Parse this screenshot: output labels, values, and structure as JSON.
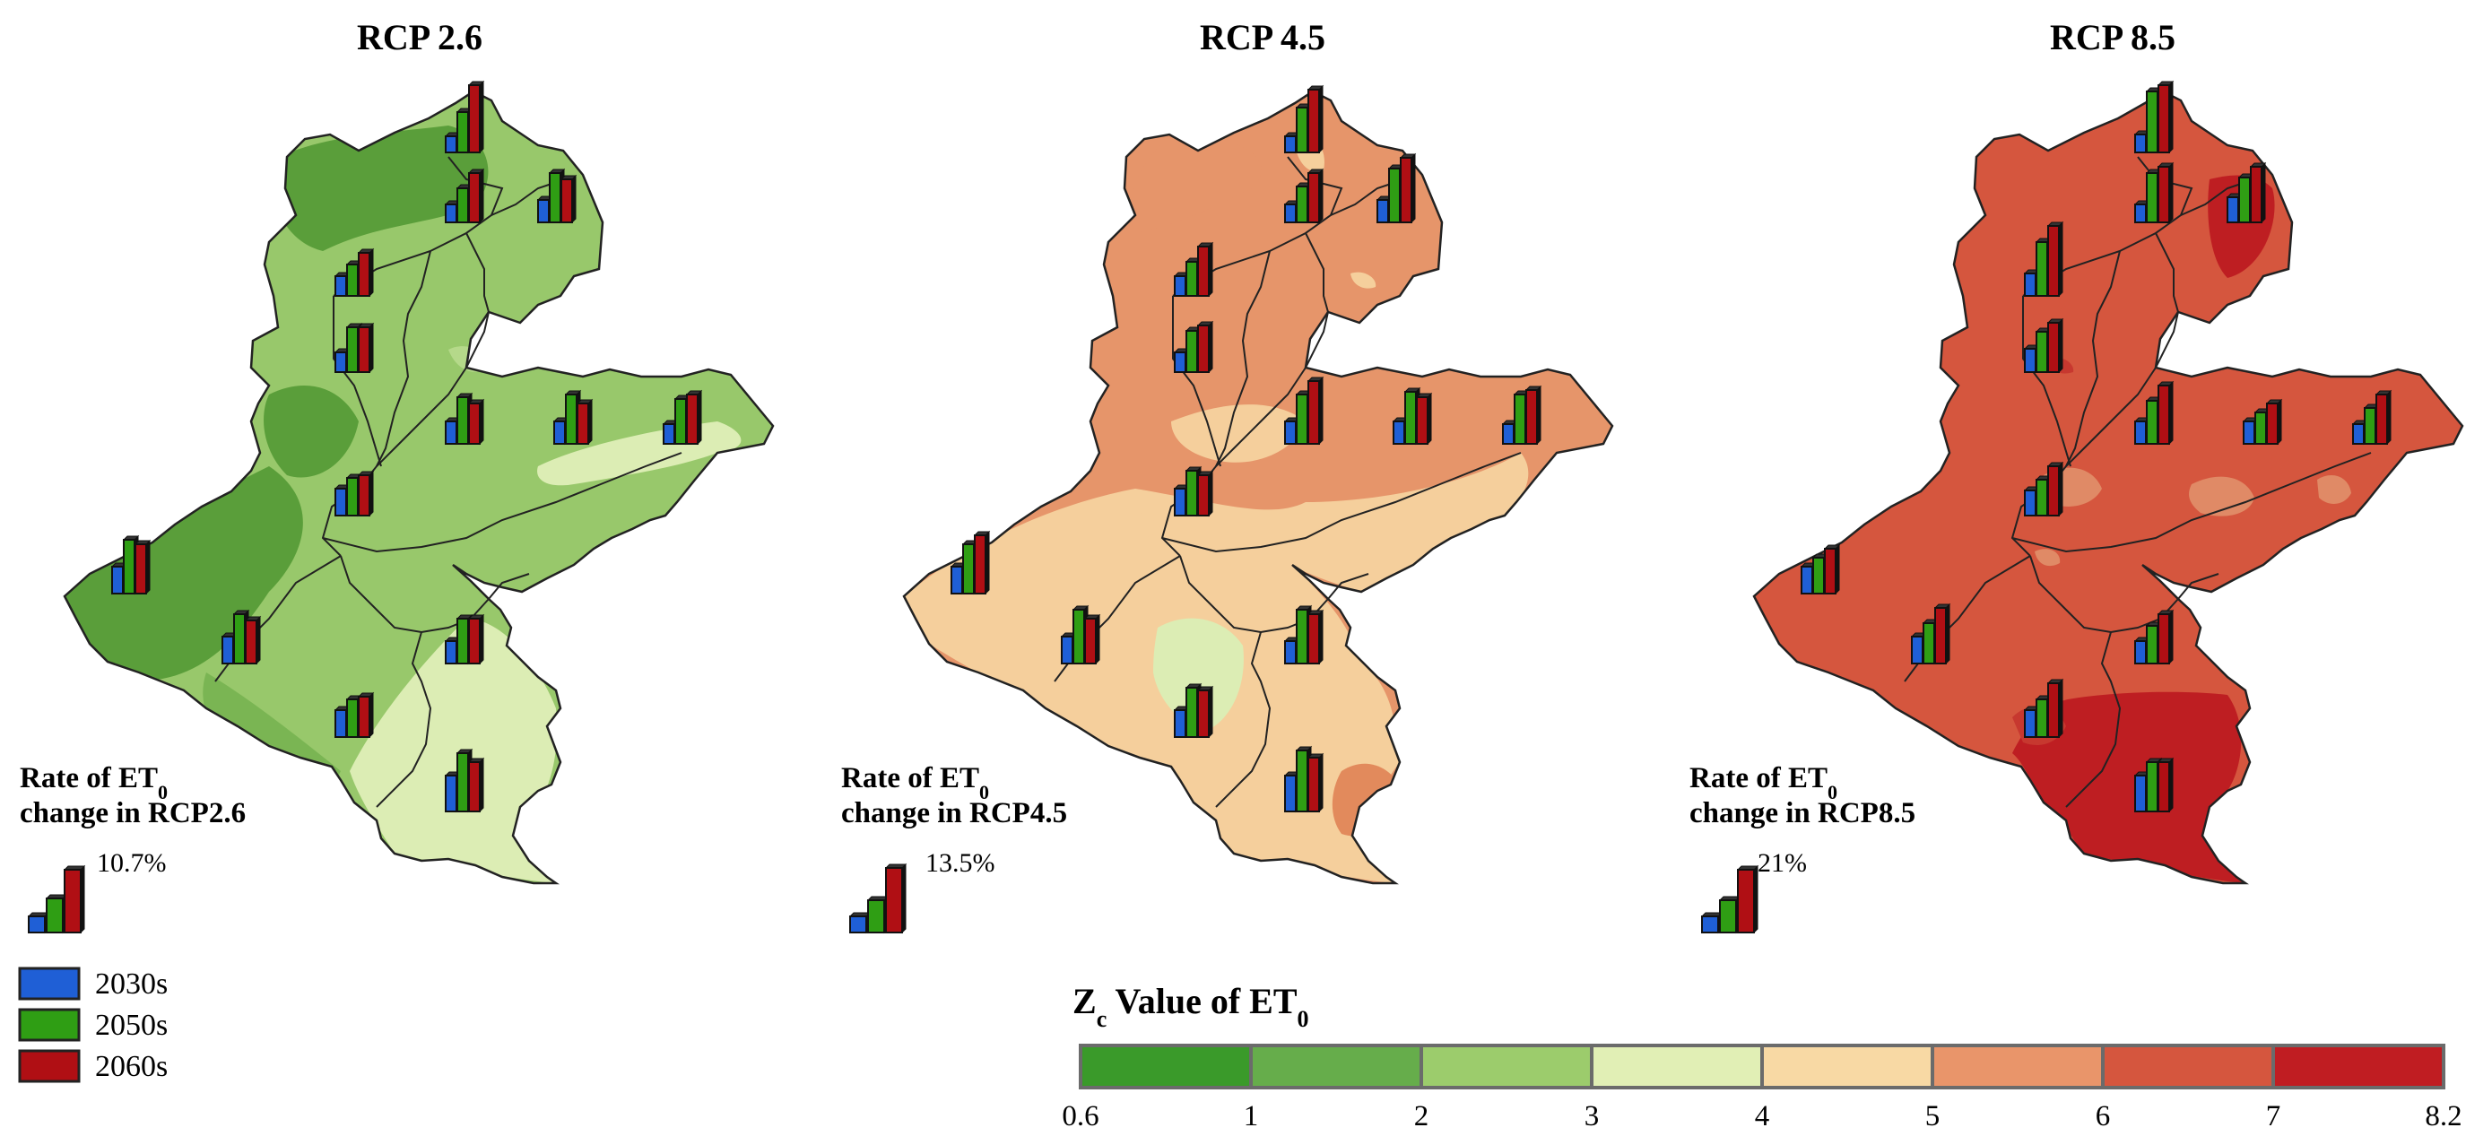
{
  "panels": [
    {
      "title": "RCP 2.6",
      "rate_line1": "Rate of ET",
      "rate_sub": "0",
      "rate_line2": "change in RCP2.6",
      "rate_value": "10.7%",
      "base_color": "#98c86b",
      "zones": [
        "#5a9e3a",
        "#7ab553",
        "#98c86b",
        "#b5d98a",
        "#dcedb4"
      ]
    },
    {
      "title": "RCP 4.5",
      "rate_line1": "Rate of ET",
      "rate_sub": "0",
      "rate_line2": "change in RCP4.5",
      "rate_value": "13.5%",
      "base_color": "#e6956a",
      "zones": [
        "#e6956a",
        "#f5cf9c",
        "#f8dcaa",
        "#dcedb4",
        "#e28a5c"
      ]
    },
    {
      "title": "RCP 8.5",
      "rate_line1": "Rate of ET",
      "rate_sub": "0",
      "rate_line2": "change in RCP8.5",
      "rate_value": "21%",
      "base_color": "#d5563e",
      "zones": [
        "#d5563e",
        "#be1e22",
        "#e08a66",
        "#c7382f",
        "#e39a78"
      ]
    }
  ],
  "legend": {
    "items": [
      {
        "label": "2030s",
        "color": "#1f5fd6"
      },
      {
        "label": "2050s",
        "color": "#2f9e14"
      },
      {
        "label": "2060s",
        "color": "#b00f14"
      }
    ]
  },
  "colorbar": {
    "title_main": "Z",
    "title_sub1": "c",
    "title_rest": " Value of ET",
    "title_sub2": "0",
    "colors": [
      "#3a9a2a",
      "#66ad4b",
      "#9ccc6c",
      "#e1efb5",
      "#f8d9a4",
      "#e9956a",
      "#d5563e",
      "#c01d22"
    ],
    "ticks": [
      "0.6",
      "1",
      "2",
      "3",
      "4",
      "5",
      "6",
      "7",
      "8.2"
    ]
  },
  "bar_colors": {
    "b2030": "#1f5fd6",
    "b2050": "#2f9e14",
    "b2060": "#b00f14"
  }
}
